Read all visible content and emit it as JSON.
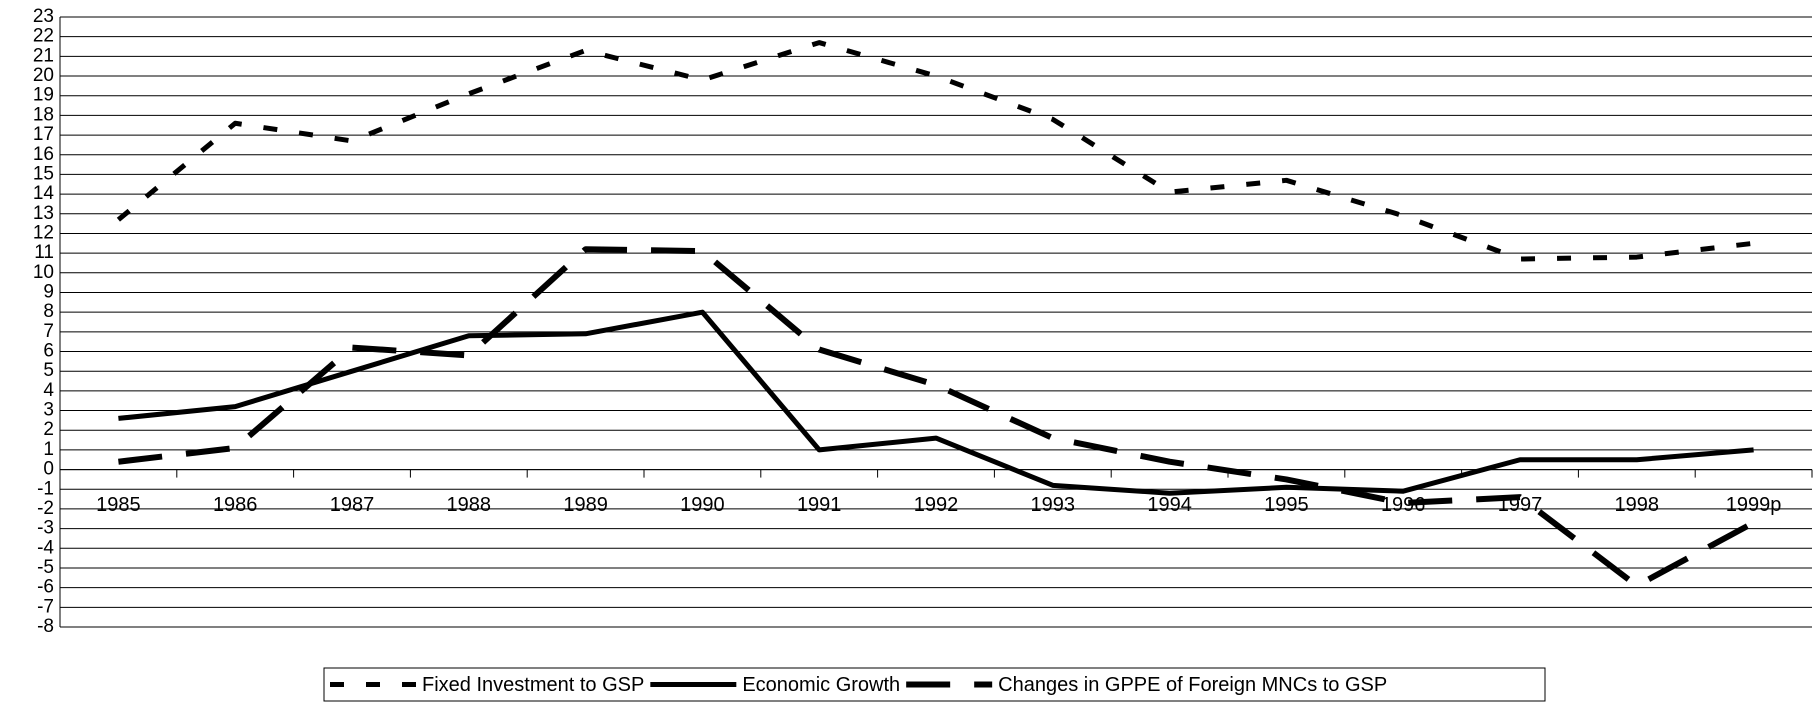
{
  "chart_data": {
    "type": "line",
    "categories": [
      "1985",
      "1986",
      "1987",
      "1988",
      "1989",
      "1990",
      "1991",
      "1992",
      "1993",
      "1994",
      "1995",
      "1996",
      "1997",
      "1998",
      "1999p"
    ],
    "series": [
      {
        "name": "Fixed Investment to GSP",
        "color": "#000000",
        "dash": "short",
        "values": [
          12.7,
          17.6,
          16.7,
          19.1,
          21.3,
          19.8,
          21.7,
          20.0,
          17.8,
          14.1,
          14.7,
          12.9,
          10.7,
          10.8,
          11.5
        ]
      },
      {
        "name": "Economic Growth",
        "color": "#000000",
        "dash": "solid",
        "values": [
          2.6,
          3.2,
          5.0,
          6.8,
          6.9,
          8.0,
          1.0,
          1.6,
          -0.8,
          -1.2,
          -0.9,
          -1.1,
          0.5,
          0.5,
          1.0
        ]
      },
      {
        "name": "Changes in GPPE of Foreign MNCs to GSP",
        "color": "#000000",
        "dash": "long",
        "values": [
          0.4,
          1.1,
          6.2,
          5.8,
          11.2,
          11.1,
          6.1,
          4.3,
          1.6,
          0.4,
          -0.5,
          -1.7,
          -1.4,
          -5.9,
          -2.7
        ]
      }
    ],
    "ylim": [
      -8,
      23
    ],
    "yticks": [
      -8,
      -7,
      -6,
      -5,
      -4,
      -3,
      -2,
      -1,
      0,
      1,
      2,
      3,
      4,
      5,
      6,
      7,
      8,
      9,
      10,
      11,
      12,
      13,
      14,
      15,
      16,
      17,
      18,
      19,
      20,
      21,
      22,
      23
    ],
    "grid": true,
    "legend": "bottom"
  }
}
